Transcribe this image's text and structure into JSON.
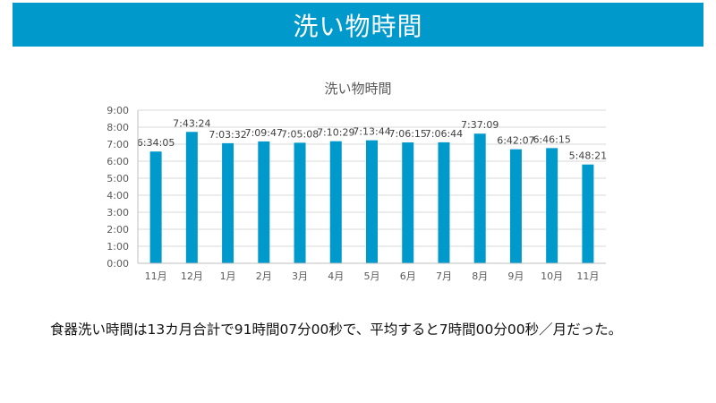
{
  "header": {
    "title": "洗い物時間"
  },
  "colors": {
    "banner": "#0099cc",
    "bar": "#0099cc",
    "grid": "#d9d9d9",
    "text": "#595959"
  },
  "chart_data": {
    "type": "bar",
    "title": "洗い物時間",
    "xlabel": "",
    "ylabel": "",
    "categories": [
      "11月",
      "12月",
      "1月",
      "2月",
      "3月",
      "4月",
      "5月",
      "6月",
      "7月",
      "8月",
      "9月",
      "10月",
      "11月"
    ],
    "values": [
      6.5681,
      7.7233,
      7.0589,
      7.1631,
      7.0856,
      7.1747,
      7.2289,
      7.1042,
      7.1122,
      7.6192,
      6.7019,
      6.7708,
      5.8058
    ],
    "data_labels": [
      "6:34:05",
      "7:43:24",
      "7:03:32",
      "7:09:47",
      "7:05:08",
      "7:10:29",
      "7:13:44",
      "7:06:15",
      "7:06:44",
      "7:37:09",
      "6:42:07",
      "6:46:15",
      "5:48:21"
    ],
    "y_ticks": [
      "0:00",
      "1:00",
      "2:00",
      "3:00",
      "4:00",
      "5:00",
      "6:00",
      "7:00",
      "8:00",
      "9:00"
    ],
    "ylim": [
      0,
      9
    ],
    "grid": true,
    "legend": "none"
  },
  "summary": {
    "text": "食器洗い時間は13カ月合計で91時間07分00秒で、平均すると7時間00分00秒／月だった。"
  }
}
